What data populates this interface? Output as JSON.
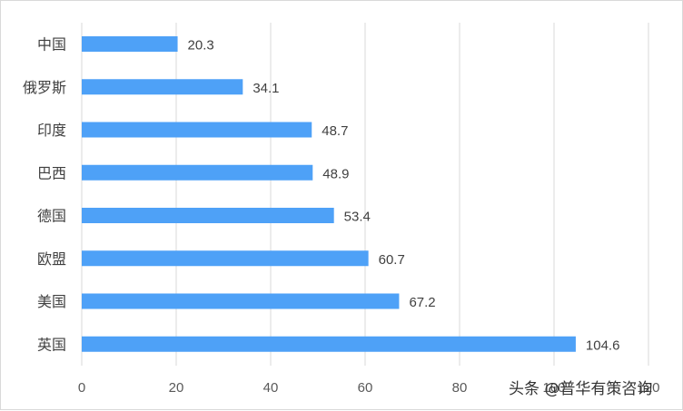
{
  "chart_data": {
    "type": "bar",
    "orientation": "horizontal",
    "categories": [
      "中国",
      "俄罗斯",
      "印度",
      "巴西",
      "德国",
      "欧盟",
      "美国",
      "英国"
    ],
    "values": [
      20.3,
      34.1,
      48.7,
      48.9,
      53.4,
      60.7,
      67.2,
      104.6
    ],
    "x_ticks": [
      0,
      20,
      40,
      60,
      80,
      100,
      120
    ],
    "xlim": [
      0,
      120
    ],
    "grid": "vertical",
    "legend": "none",
    "bar_color": "#4ea1f7",
    "title": "",
    "xlabel": "",
    "ylabel": ""
  },
  "watermark": "头条 @普华有策咨询"
}
